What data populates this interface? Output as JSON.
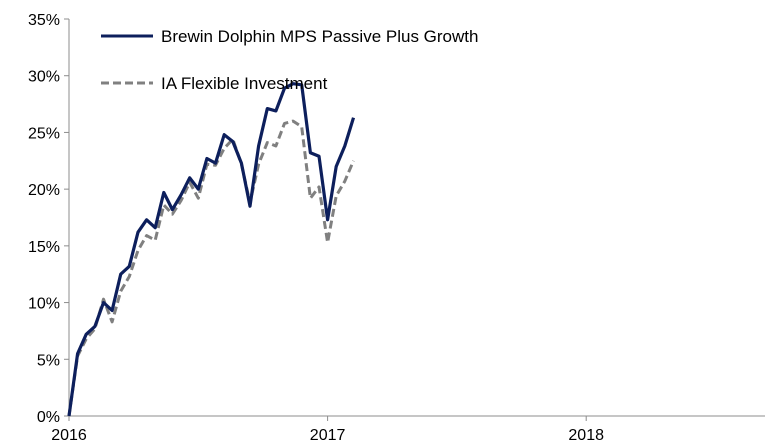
{
  "chart_data": {
    "type": "line",
    "x_labels": [
      "2016",
      "2017",
      "2018"
    ],
    "y_ticks": [
      "0%",
      "5%",
      "10%",
      "15%",
      "20%",
      "25%",
      "30%",
      "35%"
    ],
    "ylim": [
      0,
      35
    ],
    "grid": false,
    "legend_position": "top-left",
    "series": [
      {
        "name": "Brewin Dolphin MPS Passive Plus Growth",
        "color": "#0d1f5c",
        "style": "solid",
        "values": [
          0.0,
          5.5,
          7.2,
          7.9,
          10.0,
          9.3,
          12.5,
          13.2,
          16.2,
          17.3,
          16.6,
          19.7,
          18.2,
          19.5,
          21.0,
          20.0,
          22.7,
          22.3,
          24.8,
          24.2,
          22.3,
          18.5,
          23.8,
          27.1,
          26.9,
          28.9,
          29.3,
          29.2,
          23.2,
          22.9,
          17.3,
          22.0,
          23.8,
          26.3
        ]
      },
      {
        "name": "IA Flexible Investment",
        "color": "#808080",
        "style": "dashed",
        "values": [
          0.0,
          5.3,
          6.8,
          7.7,
          10.3,
          8.3,
          11.0,
          12.3,
          14.6,
          15.9,
          15.5,
          18.6,
          17.8,
          19.0,
          20.6,
          19.2,
          22.2,
          22.1,
          23.6,
          24.4,
          22.2,
          18.8,
          22.2,
          24.1,
          23.8,
          25.8,
          26.0,
          25.5,
          19.2,
          20.2,
          15.3,
          19.4,
          20.7,
          22.5
        ]
      }
    ]
  }
}
